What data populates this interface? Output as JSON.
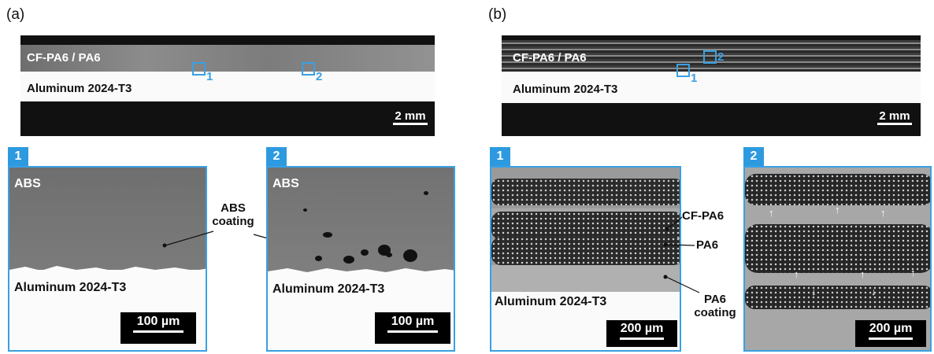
{
  "panel_a": {
    "label": "(a)",
    "overview": {
      "layer": "CF-PA6 / PA6",
      "metal": "Aluminum 2024-T3",
      "scale": "2 mm",
      "roi_1": "1",
      "roi_2": "2"
    },
    "inset1": {
      "tag": "1",
      "top": "ABS",
      "metal": "Aluminum 2024-T3",
      "scale": "100 µm"
    },
    "inset2": {
      "tag": "2",
      "top": "ABS",
      "metal": "Aluminum 2024-T3",
      "scale": "100 µm"
    },
    "coating_label": "ABS coating"
  },
  "panel_b": {
    "label": "(b)",
    "overview": {
      "layer": "CF-PA6 / PA6",
      "metal": "Aluminum 2024-T3",
      "scale": "2 mm",
      "roi_1": "1",
      "roi_2": "2"
    },
    "inset1": {
      "tag": "1",
      "metal": "Aluminum 2024-T3",
      "scale": "200 µm",
      "cf_label": "CF-PA6",
      "pa_label": "PA6",
      "coating_label": "PA6 coating"
    },
    "inset2": {
      "tag": "2",
      "scale": "200 µm"
    }
  },
  "colors": {
    "accent": "#2d9ae0"
  }
}
